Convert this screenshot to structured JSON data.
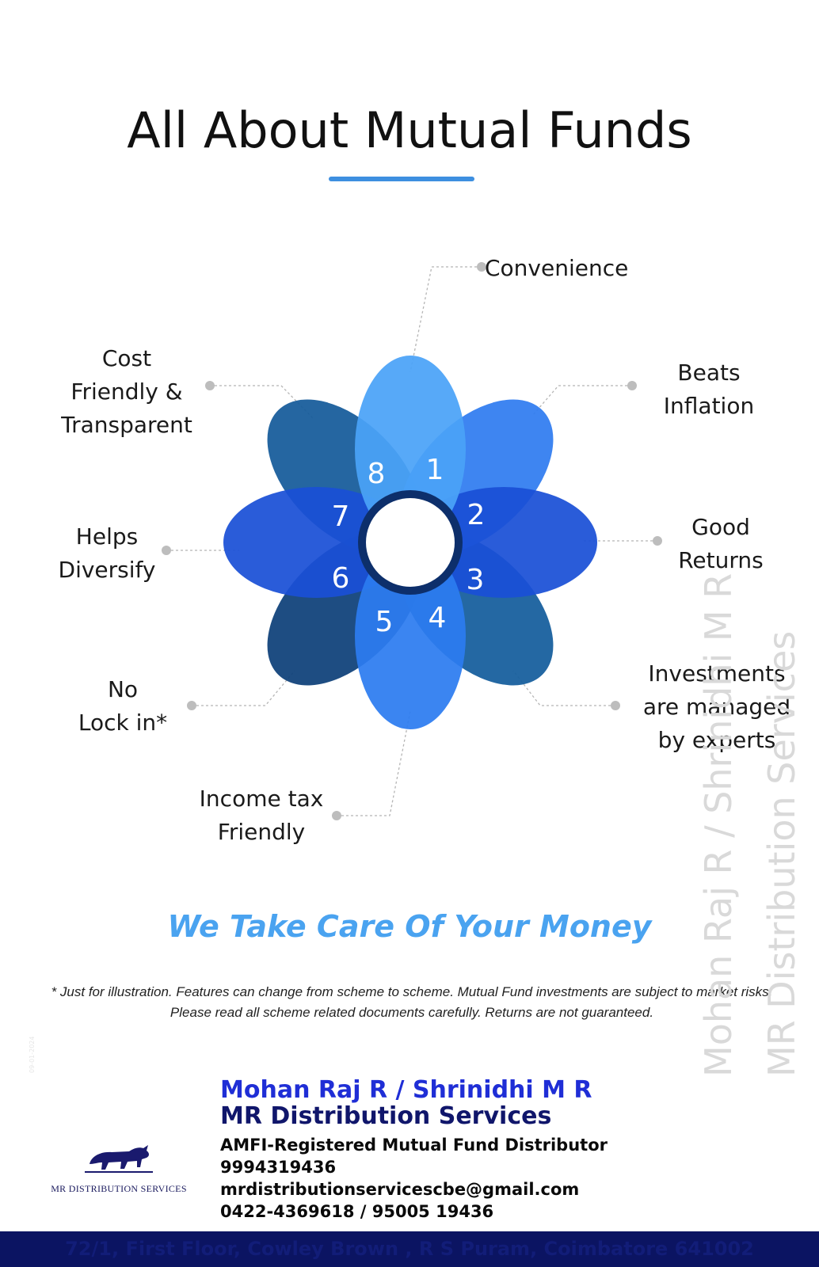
{
  "title": "All About Mutual Funds",
  "flower": {
    "petal_numbers": [
      "1",
      "2",
      "3",
      "4",
      "5",
      "6",
      "7",
      "8"
    ],
    "petal_colors": [
      "#4aa3f7",
      "#2f7cf0",
      "#1a50d6",
      "#135c9c",
      "#2c7cf0",
      "#0d3f78",
      "#1a50d6",
      "#145a9a"
    ]
  },
  "features": [
    {
      "number": "1",
      "label": "Convenience"
    },
    {
      "number": "2",
      "label": "Beats\nInflation"
    },
    {
      "number": "3",
      "label": "Good\nReturns"
    },
    {
      "number": "4",
      "label": "Investments\nare managed\nby experts"
    },
    {
      "number": "5",
      "label": "Income tax\nFriendly"
    },
    {
      "number": "6",
      "label": "No\nLock in*"
    },
    {
      "number": "7",
      "label": "Helps\nDiversify"
    },
    {
      "number": "8",
      "label": "Cost\nFriendly &\nTransparent"
    }
  ],
  "tagline": "We Take Care Of Your Money",
  "disclaimer": "* Just for illustration. Features can change from scheme to scheme. Mutual Fund investments are subject to market risks. Please read all  scheme related documents carefully. Returns are not guaranteed.",
  "watermark": {
    "names": "Mohan Raj R / Shrinidhi M R",
    "company": "MR Distribution Services"
  },
  "tiny_mark": "09-01-2024",
  "logo": {
    "icon": "bull-icon",
    "caption": "MR  DISTRIBUTION SERVICES"
  },
  "contact": {
    "names": "Mohan Raj R / Shrinidhi M R",
    "company": "MR Distribution Services",
    "designation": "AMFI-Registered Mutual Fund Distributor",
    "mobile": "9994319436",
    "email": "mrdistributionservicescbe@gmail.com",
    "landline": "0422-4369618 / 95005 19436"
  },
  "footer": {
    "address": "72/1, First Floor, Cowley Brown , R S Puram, Coimbatore 641002"
  }
}
